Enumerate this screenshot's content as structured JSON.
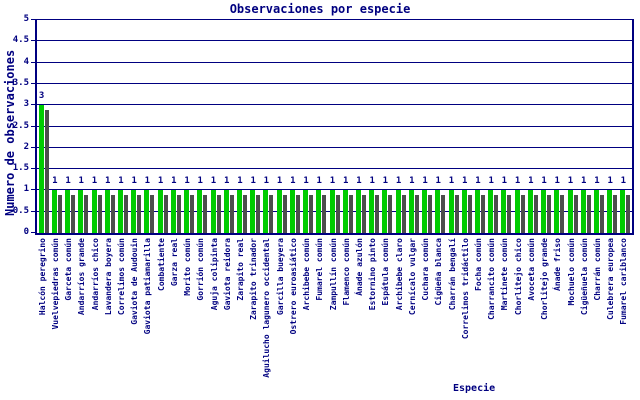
{
  "chart_data": {
    "type": "bar",
    "title": "Observaciones por especie",
    "xlabel": "Especie",
    "ylabel": "Numero de observaciones",
    "ylim": [
      0,
      5
    ],
    "ytick_step": 0.5,
    "grid": true,
    "legend": "none",
    "bar_color": "#00cc00",
    "bar_shadow_color": "#4d4d4d",
    "axis_color": "#000080",
    "background_color": "#ffffff",
    "categories": [
      "Halcón peregrino",
      "Vuelvepiedras común",
      "Garceta común",
      "Andarríos grande",
      "Andarríos chico",
      "Lavandera boyera",
      "Correlimos común",
      "Gaviota de Audouin",
      "Gaviota patiamarilla",
      "Combatiente",
      "Garza real",
      "Morito común",
      "Gorrión común",
      "Aguja colipinta",
      "Gaviota reidora",
      "Zarapito real",
      "Zarapito trinador",
      "Aguilucho lagunero occidental",
      "Garcilla bueyera",
      "Ostrero euroasiático",
      "Archibebe común",
      "Fumarel común",
      "Zampullín común",
      "Flamenco común",
      "Ánade azulón",
      "Estornino pinto",
      "Espátula común",
      "Archibebe claro",
      "Cernícalo vulgar",
      "Cuchara común",
      "Cigüeña blanca",
      "Charrán bengalí",
      "Correlimos tridáctilo",
      "Focha común",
      "Charrancito común",
      "Martinete común",
      "Chorlitejo chico",
      "Avoceta común",
      "Chorlitejo grande",
      "Ánade friso",
      "Mochuelo común",
      "Cigüeñuela común",
      "Charrán común",
      "Culebrera europea",
      "Fumarel cariblanco"
    ],
    "values": [
      3,
      1,
      1,
      1,
      1,
      1,
      1,
      1,
      1,
      1,
      1,
      1,
      1,
      1,
      1,
      1,
      1,
      1,
      1,
      1,
      1,
      1,
      1,
      1,
      1,
      1,
      1,
      1,
      1,
      1,
      1,
      1,
      1,
      1,
      1,
      1,
      1,
      1,
      1,
      1,
      1,
      1,
      1,
      1,
      1
    ]
  }
}
